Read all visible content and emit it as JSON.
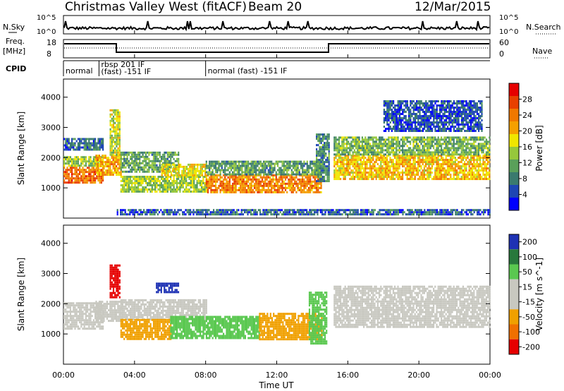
{
  "header": {
    "title": "Christmas Valley West (fitACF)",
    "beam": "Beam 20",
    "date": "12/Mar/2015"
  },
  "strips": {
    "nsky_label": "N.Sky",
    "nsky_ticks": [
      "10^5",
      "10^0"
    ],
    "nsearch_label": "N.Search",
    "nsearch_ticks": [
      "10^5",
      "10^0"
    ],
    "freq_label_line1": "Freq.",
    "freq_label_line2": "[MHz]",
    "freq_ticks": [
      "18",
      "8"
    ],
    "nave_label": "Nave",
    "nave_ticks": [
      "60",
      "0"
    ],
    "cpid_label": "CPID",
    "cpid_segments": [
      {
        "label": "normal",
        "start_h": 0,
        "end_h": 2.0
      },
      {
        "label": "rbsp 201 IF",
        "label2": "(fast) -151 IF",
        "start_h": 2.0,
        "end_h": 8.0
      },
      {
        "label": "normal (fast) -151 IF",
        "start_h": 8.0,
        "end_h": 24
      }
    ]
  },
  "chart_data": [
    {
      "type": "heatmap",
      "name": "power",
      "ylabel": "Slant Range [km]",
      "yticks": [
        "1000",
        "2000",
        "3000",
        "4000"
      ],
      "ylim": [
        0,
        4600
      ],
      "xlim_hours": [
        0,
        24
      ],
      "colorbar_label": "Power [dB]",
      "colorbar_ticks": [
        "4",
        "8",
        "12",
        "16",
        "20",
        "24",
        "28"
      ],
      "colorbar_range": [
        0,
        32
      ],
      "colormap": [
        "#0000ff",
        "#1e46b4",
        "#3a7a6e",
        "#5aa05a",
        "#96c83c",
        "#f0e600",
        "#f5a000",
        "#f07800",
        "#e84000",
        "#e60000"
      ],
      "echo_bands": [
        {
          "t0": 0.0,
          "t1": 2.2,
          "r0": 1200,
          "r1": 1700,
          "p": 26
        },
        {
          "t0": 0.0,
          "t1": 2.2,
          "r0": 1700,
          "r1": 2050,
          "p": 14
        },
        {
          "t0": 0.0,
          "t1": 2.2,
          "r0": 2250,
          "r1": 2650,
          "p": 6
        },
        {
          "t0": 1.8,
          "t1": 3.2,
          "r0": 1400,
          "r1": 2100,
          "p": 22
        },
        {
          "t0": 2.6,
          "t1": 3.2,
          "r0": 2100,
          "r1": 3600,
          "p": 16
        },
        {
          "t0": 3.2,
          "t1": 6.5,
          "r0": 1500,
          "r1": 2200,
          "p": 10
        },
        {
          "t0": 3.2,
          "t1": 8.0,
          "r0": 900,
          "r1": 1400,
          "p": 14
        },
        {
          "t0": 5.5,
          "t1": 8.0,
          "r0": 1400,
          "r1": 1800,
          "p": 18
        },
        {
          "t0": 8.0,
          "t1": 14.5,
          "r0": 850,
          "r1": 1450,
          "p": 24
        },
        {
          "t0": 8.0,
          "t1": 14.5,
          "r0": 1450,
          "r1": 1900,
          "p": 10
        },
        {
          "t0": 14.2,
          "t1": 14.9,
          "r0": 1200,
          "r1": 2800,
          "p": 8
        },
        {
          "t0": 15.2,
          "t1": 24.0,
          "r0": 1300,
          "r1": 2100,
          "p": 20
        },
        {
          "t0": 15.2,
          "t1": 24.0,
          "r0": 2100,
          "r1": 2700,
          "p": 12
        },
        {
          "t0": 18.0,
          "t1": 23.5,
          "r0": 2900,
          "r1": 3900,
          "p": 4
        },
        {
          "t0": 3.0,
          "t1": 24.0,
          "r0": 100,
          "r1": 300,
          "p": 5
        }
      ]
    },
    {
      "type": "heatmap",
      "name": "velocity",
      "ylabel": "Slant Range [km]",
      "yticks": [
        "1000",
        "2000",
        "3000",
        "4000"
      ],
      "ylim": [
        0,
        4600
      ],
      "xlim_hours": [
        0,
        24
      ],
      "xlabel": "Time UT",
      "xticks": [
        "00:00",
        "04:00",
        "08:00",
        "12:00",
        "16:00",
        "20:00",
        "00:00"
      ],
      "colorbar_label": "Velocity [m s^-1]",
      "colorbar_ticks": [
        "200",
        "100",
        "50",
        "15",
        "-15",
        "-50",
        "-100",
        "-200"
      ],
      "colormap": [
        "#1e32b4",
        "#28783c",
        "#5ac850",
        "#c8c8c0",
        "#c8c8c0",
        "#f0a000",
        "#f07000",
        "#e60000"
      ],
      "echo_bands": [
        {
          "t0": 0.0,
          "t1": 2.2,
          "r0": 1200,
          "r1": 2050,
          "v": 0
        },
        {
          "t0": 1.8,
          "t1": 3.2,
          "r0": 1400,
          "r1": 2100,
          "v": 0
        },
        {
          "t0": 2.6,
          "t1": 3.2,
          "r0": 2200,
          "r1": 3300,
          "v": -150
        },
        {
          "t0": 3.2,
          "t1": 8.0,
          "r0": 1500,
          "r1": 2150,
          "v": 0
        },
        {
          "t0": 3.2,
          "t1": 6.0,
          "r0": 850,
          "r1": 1500,
          "v": -40
        },
        {
          "t0": 6.0,
          "t1": 11.0,
          "r0": 850,
          "r1": 1600,
          "v": 40
        },
        {
          "t0": 11.0,
          "t1": 14.5,
          "r0": 850,
          "r1": 1700,
          "v": -40
        },
        {
          "t0": 13.8,
          "t1": 14.8,
          "r0": 700,
          "r1": 2400,
          "v": 40
        },
        {
          "t0": 15.2,
          "t1": 24.0,
          "r0": 1200,
          "r1": 2600,
          "v": 0
        },
        {
          "t0": 5.2,
          "t1": 6.5,
          "r0": 2400,
          "r1": 2700,
          "v": 150
        }
      ]
    }
  ]
}
